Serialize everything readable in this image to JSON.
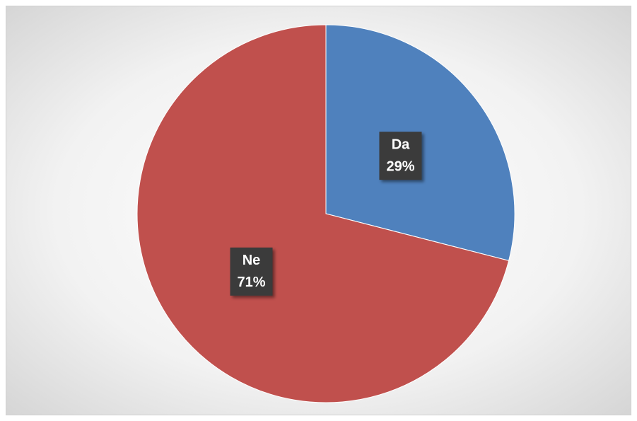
{
  "chart_data": {
    "type": "pie",
    "categories": [
      "Da",
      "Ne"
    ],
    "values": [
      29,
      71
    ],
    "value_labels": [
      "29%",
      "71%"
    ],
    "colors": [
      "#4f81bd",
      "#c0504d"
    ]
  }
}
